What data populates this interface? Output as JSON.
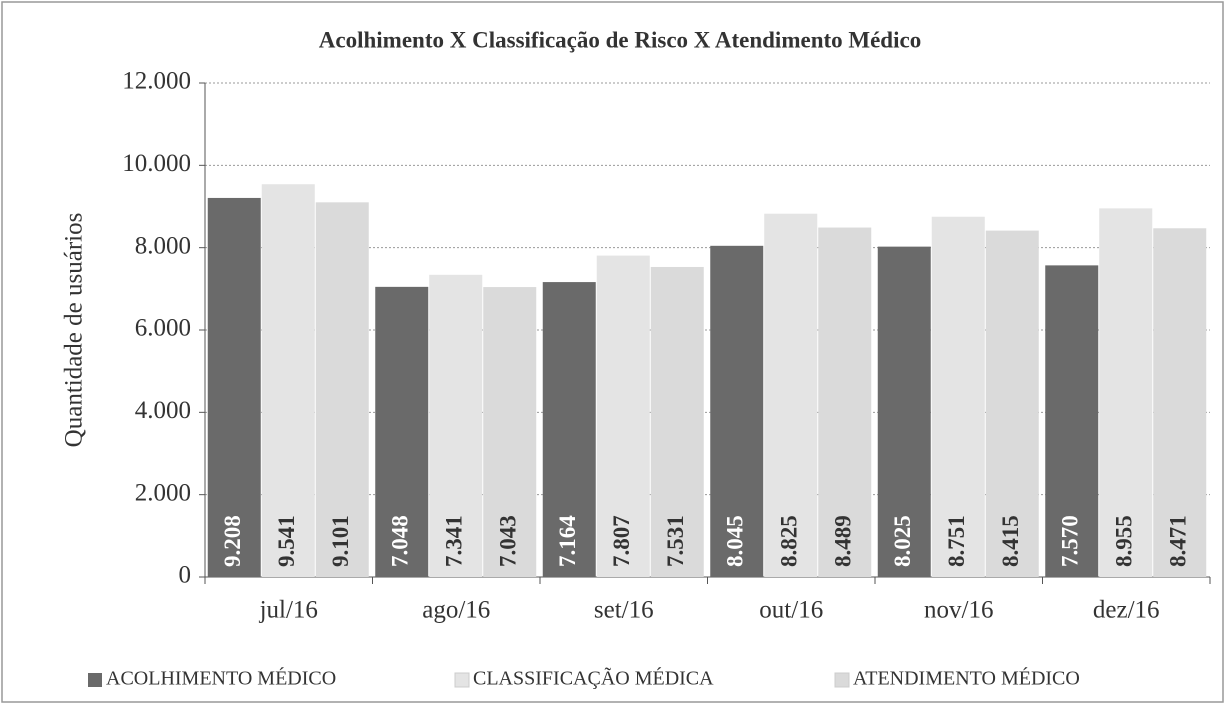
{
  "chart_data": {
    "type": "bar",
    "title": "Acolhimento X Classificação de Risco X Atendimento Médico",
    "y_label": "Quantidade de usuários",
    "categories": [
      "jul/16",
      "ago/16",
      "set/16",
      "out/16",
      "nov/16",
      "dez/16"
    ],
    "series": [
      {
        "name": "ACOLHIMENTO MÉDICO",
        "color": "#6a6a6a",
        "values": [
          9208,
          7048,
          7164,
          8045,
          8025,
          7570
        ],
        "value_labels": [
          "9.208",
          "7.048",
          "7.164",
          "8.045",
          "8.025",
          "7.570"
        ]
      },
      {
        "name": "CLASSIFICAÇÃO MÉDICA",
        "color": "#e4e4e4",
        "values": [
          9541,
          7341,
          7807,
          8825,
          8751,
          8955
        ],
        "value_labels": [
          "9.541",
          "7.341",
          "7.807",
          "8.825",
          "8.751",
          "8.955"
        ]
      },
      {
        "name": "ATENDIMENTO MÉDICO",
        "color": "#dadada",
        "values": [
          9101,
          7043,
          7531,
          8489,
          8415,
          8471
        ],
        "value_labels": [
          "9.101",
          "7.043",
          "7.531",
          "8.489",
          "8.415",
          "8.471"
        ]
      }
    ],
    "ylim": [
      0,
      12000
    ],
    "yticks": [
      0,
      {
        "value": 2000,
        "label": "2.000"
      },
      {
        "value": 4000,
        "label": "4.000"
      },
      {
        "value": 6000,
        "label": "6.000"
      },
      {
        "value": 8000,
        "label": "8.000"
      },
      {
        "value": 10000,
        "label": "10.000"
      },
      {
        "value": 12000,
        "label": "12.000"
      }
    ],
    "grid": true,
    "legend": "bottom"
  }
}
